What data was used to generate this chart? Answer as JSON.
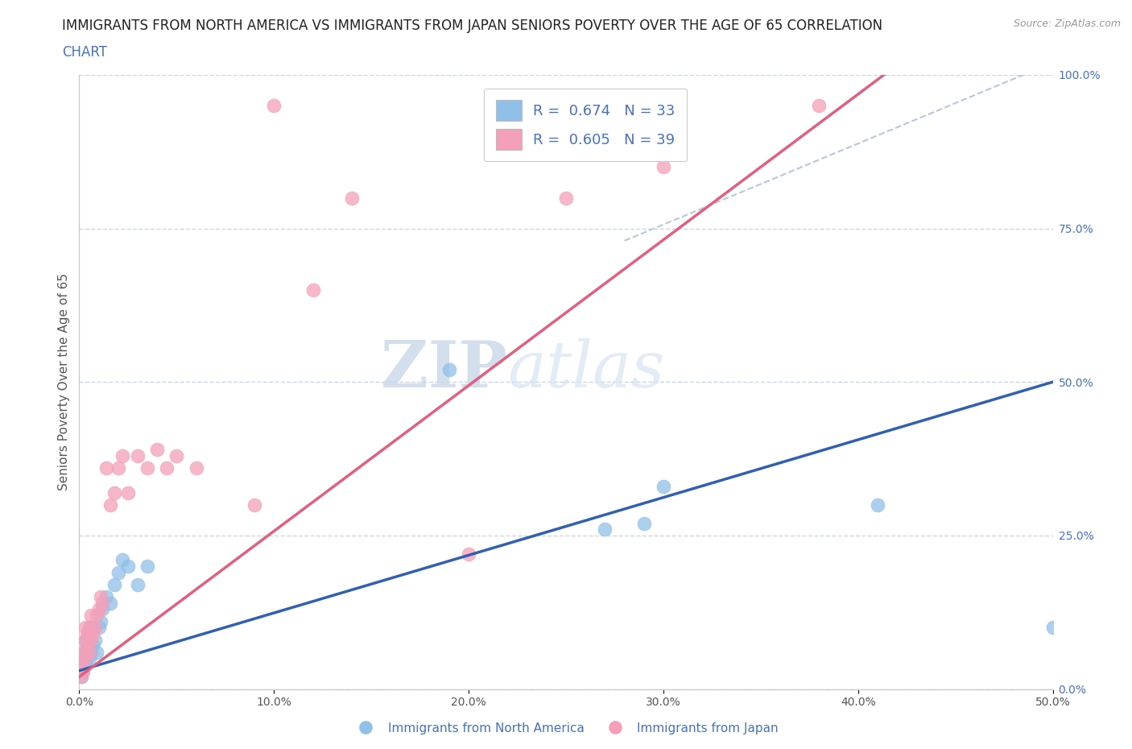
{
  "title_line1": "IMMIGRANTS FROM NORTH AMERICA VS IMMIGRANTS FROM JAPAN SENIORS POVERTY OVER THE AGE OF 65 CORRELATION",
  "title_line2": "CHART",
  "source": "Source: ZipAtlas.com",
  "ylabel": "Seniors Poverty Over the Age of 65",
  "xlim": [
    0,
    0.5
  ],
  "ylim": [
    0,
    1.0
  ],
  "xtick_labels": [
    "0.0%",
    "10.0%",
    "20.0%",
    "30.0%",
    "40.0%",
    "50.0%"
  ],
  "xtick_vals": [
    0.0,
    0.1,
    0.2,
    0.3,
    0.4,
    0.5
  ],
  "ytick_labels": [
    "0.0%",
    "25.0%",
    "50.0%",
    "75.0%",
    "100.0%"
  ],
  "ytick_vals": [
    0.0,
    0.25,
    0.5,
    0.75,
    1.0
  ],
  "blue_R": 0.674,
  "blue_N": 33,
  "pink_R": 0.605,
  "pink_N": 39,
  "blue_color": "#90c0e8",
  "pink_color": "#f4a0b8",
  "blue_line_color": "#3060b0",
  "pink_line_color": "#e06080",
  "dash_line_color": "#b8c8d8",
  "watermark_zip": "ZIP",
  "watermark_atlas": "atlas",
  "legend_label_blue": "Immigrants from North America",
  "legend_label_pink": "Immigrants from Japan",
  "blue_scatter_x": [
    0.001,
    0.001,
    0.002,
    0.002,
    0.003,
    0.003,
    0.003,
    0.004,
    0.004,
    0.005,
    0.005,
    0.006,
    0.006,
    0.007,
    0.008,
    0.009,
    0.01,
    0.011,
    0.012,
    0.014,
    0.016,
    0.018,
    0.02,
    0.022,
    0.025,
    0.03,
    0.035,
    0.19,
    0.27,
    0.29,
    0.3,
    0.41,
    0.5
  ],
  "blue_scatter_y": [
    0.02,
    0.04,
    0.03,
    0.05,
    0.04,
    0.06,
    0.08,
    0.05,
    0.07,
    0.05,
    0.09,
    0.06,
    0.1,
    0.07,
    0.08,
    0.06,
    0.1,
    0.11,
    0.13,
    0.15,
    0.14,
    0.17,
    0.19,
    0.21,
    0.2,
    0.17,
    0.2,
    0.52,
    0.26,
    0.27,
    0.33,
    0.3,
    0.1
  ],
  "pink_scatter_x": [
    0.001,
    0.001,
    0.002,
    0.002,
    0.003,
    0.003,
    0.003,
    0.004,
    0.004,
    0.005,
    0.005,
    0.006,
    0.006,
    0.007,
    0.008,
    0.009,
    0.01,
    0.011,
    0.012,
    0.014,
    0.016,
    0.018,
    0.02,
    0.022,
    0.025,
    0.03,
    0.035,
    0.04,
    0.045,
    0.05,
    0.06,
    0.09,
    0.1,
    0.12,
    0.14,
    0.2,
    0.25,
    0.3,
    0.38
  ],
  "pink_scatter_y": [
    0.02,
    0.04,
    0.03,
    0.06,
    0.05,
    0.08,
    0.1,
    0.07,
    0.09,
    0.06,
    0.1,
    0.08,
    0.12,
    0.09,
    0.1,
    0.12,
    0.13,
    0.15,
    0.14,
    0.36,
    0.3,
    0.32,
    0.36,
    0.38,
    0.32,
    0.38,
    0.36,
    0.39,
    0.36,
    0.38,
    0.36,
    0.3,
    0.95,
    0.65,
    0.8,
    0.22,
    0.8,
    0.85,
    0.95
  ],
  "background_color": "#ffffff",
  "grid_color": "#c8d8e8",
  "title_fontsize": 12,
  "axis_label_fontsize": 11,
  "tick_fontsize": 10,
  "legend_fontsize": 13
}
